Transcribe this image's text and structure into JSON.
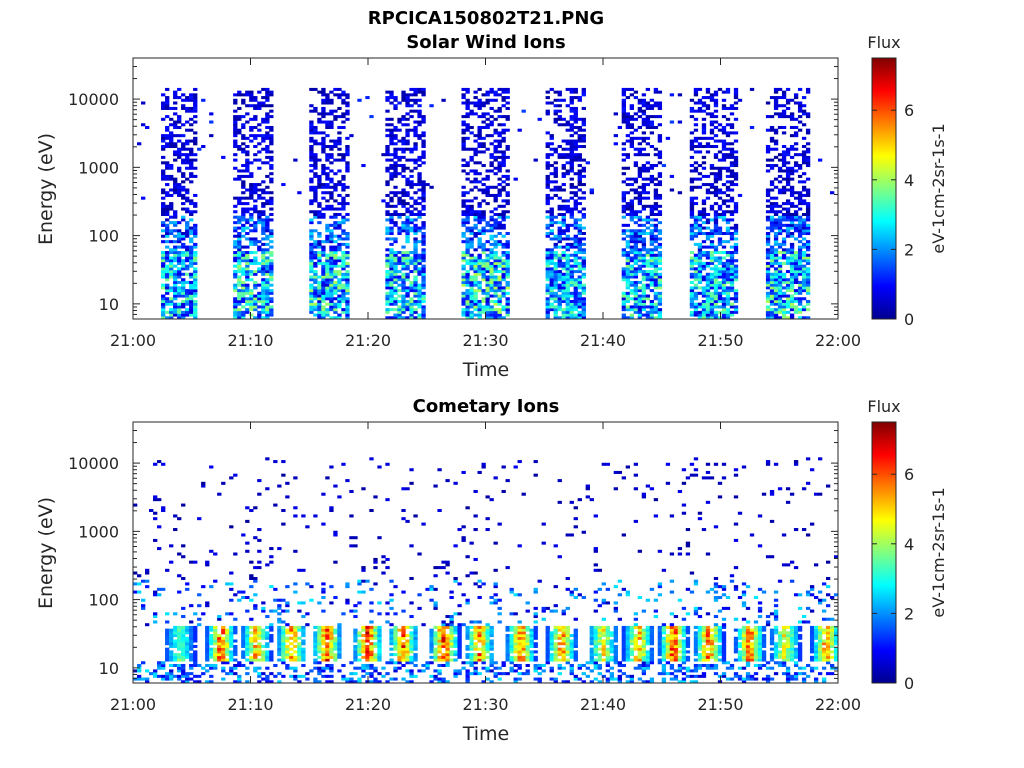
{
  "figure": {
    "title": "RPCICA150802T21.PNG"
  },
  "colormap": {
    "name": "jet",
    "stops": [
      "#00008f",
      "#0000ff",
      "#0080ff",
      "#00ffff",
      "#80ff80",
      "#ffff00",
      "#ff8000",
      "#ff0000",
      "#800000"
    ]
  },
  "chart_data": [
    {
      "type": "heatmap",
      "title": "Solar Wind Ions",
      "xlabel": "Time",
      "ylabel": "Energy (eV)",
      "x_tick_labels": [
        "21:00",
        "21:10",
        "21:20",
        "21:30",
        "21:40",
        "21:50",
        "22:00"
      ],
      "x_range_minutes": [
        0,
        60
      ],
      "y_scale": "log",
      "y_tick_values": [
        10,
        100,
        1000,
        10000
      ],
      "y_tick_labels": [
        "10",
        "100",
        "1000",
        "10000"
      ],
      "y_range": [
        6,
        40000
      ],
      "colorbar": {
        "title": "Flux",
        "label": "eV-1cm-2sr-1s-1",
        "range": [
          0,
          7.5
        ],
        "tick_values": [
          0,
          2,
          4,
          6
        ],
        "tick_labels": [
          "0",
          "2",
          "4",
          "6"
        ]
      },
      "bursts": [
        {
          "start_min": 2.5,
          "end_min": 5.5,
          "max_flux_low_energy": 3.2
        },
        {
          "start_min": 8.5,
          "end_min": 12.0,
          "max_flux_low_energy": 3.4
        },
        {
          "start_min": 15.0,
          "end_min": 18.5,
          "max_flux_low_energy": 3.5
        },
        {
          "start_min": 21.5,
          "end_min": 25.0,
          "max_flux_low_energy": 3.2
        },
        {
          "start_min": 28.0,
          "end_min": 32.0,
          "max_flux_low_energy": 3.6
        },
        {
          "start_min": 35.0,
          "end_min": 38.5,
          "max_flux_low_energy": 3.0
        },
        {
          "start_min": 41.5,
          "end_min": 45.0,
          "max_flux_low_energy": 3.3
        },
        {
          "start_min": 47.5,
          "end_min": 51.5,
          "max_flux_low_energy": 3.2
        },
        {
          "start_min": 54.0,
          "end_min": 57.5,
          "max_flux_low_energy": 3.5
        }
      ]
    },
    {
      "type": "heatmap",
      "title": "Cometary Ions",
      "xlabel": "Time",
      "ylabel": "Energy (eV)",
      "x_tick_labels": [
        "21:00",
        "21:10",
        "21:20",
        "21:30",
        "21:40",
        "21:50",
        "22:00"
      ],
      "x_range_minutes": [
        0,
        60
      ],
      "y_scale": "log",
      "y_tick_values": [
        10,
        100,
        1000,
        10000
      ],
      "y_tick_labels": [
        "10",
        "100",
        "1000",
        "10000"
      ],
      "y_range": [
        6,
        40000
      ],
      "colorbar": {
        "title": "Flux",
        "label": "eV-1cm-2sr-1s-1",
        "range": [
          0,
          7.5
        ],
        "tick_values": [
          0,
          2,
          4,
          6
        ],
        "tick_labels": [
          "0",
          "2",
          "4",
          "6"
        ]
      },
      "peak_energy_band_eV": [
        12,
        40
      ],
      "hot_spots": [
        {
          "center_min": 4.0,
          "peak_flux": 3.0
        },
        {
          "center_min": 7.5,
          "peak_flux": 6.0
        },
        {
          "center_min": 10.5,
          "peak_flux": 5.2
        },
        {
          "center_min": 13.5,
          "peak_flux": 5.6
        },
        {
          "center_min": 16.5,
          "peak_flux": 6.2
        },
        {
          "center_min": 20.0,
          "peak_flux": 6.5
        },
        {
          "center_min": 23.0,
          "peak_flux": 5.8
        },
        {
          "center_min": 26.5,
          "peak_flux": 6.5
        },
        {
          "center_min": 29.5,
          "peak_flux": 5.5
        },
        {
          "center_min": 33.0,
          "peak_flux": 6.0
        },
        {
          "center_min": 36.5,
          "peak_flux": 5.5
        },
        {
          "center_min": 40.0,
          "peak_flux": 4.5
        },
        {
          "center_min": 43.0,
          "peak_flux": 5.2
        },
        {
          "center_min": 46.0,
          "peak_flux": 6.2
        },
        {
          "center_min": 49.0,
          "peak_flux": 5.8
        },
        {
          "center_min": 52.5,
          "peak_flux": 6.0
        },
        {
          "center_min": 55.5,
          "peak_flux": 4.5
        },
        {
          "center_min": 59.0,
          "peak_flux": 5.5
        }
      ]
    }
  ]
}
